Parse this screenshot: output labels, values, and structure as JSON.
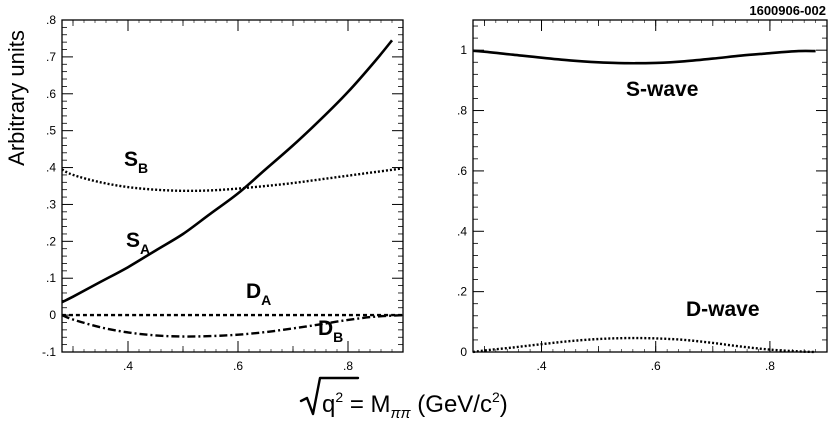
{
  "figure_id": "1600906-002",
  "xlabel": {
    "prefix": "q",
    "prefix_exp": "2",
    "mid": " = M",
    "sub": "ππ",
    "units_pre": " (GeV/c",
    "units_exp": "2",
    "units_post": ")"
  },
  "chart_data": [
    {
      "type": "line",
      "panel": "left",
      "ylabel": "Arbitrary units",
      "xlim": [
        0.28,
        0.9
      ],
      "ylim": [
        -0.1,
        0.8
      ],
      "xticks": [
        0.4,
        0.6,
        0.8
      ],
      "yticks": [
        -0.1,
        0,
        0.1,
        0.2,
        0.3,
        0.4,
        0.5,
        0.6,
        0.7,
        0.8
      ],
      "series": [
        {
          "name": "S_A",
          "label_main": "S",
          "label_sub": "A",
          "style": "solid",
          "x": [
            0.28,
            0.3,
            0.35,
            0.4,
            0.45,
            0.5,
            0.55,
            0.6,
            0.65,
            0.7,
            0.75,
            0.8,
            0.85,
            0.88
          ],
          "y": [
            0.035,
            0.05,
            0.09,
            0.13,
            0.175,
            0.22,
            0.275,
            0.33,
            0.395,
            0.46,
            0.53,
            0.605,
            0.69,
            0.745
          ]
        },
        {
          "name": "S_B",
          "label_main": "S",
          "label_sub": "B",
          "style": "dotted",
          "x": [
            0.28,
            0.3,
            0.35,
            0.4,
            0.45,
            0.5,
            0.55,
            0.6,
            0.65,
            0.7,
            0.75,
            0.8,
            0.85,
            0.9
          ],
          "y": [
            0.395,
            0.38,
            0.36,
            0.347,
            0.34,
            0.337,
            0.338,
            0.343,
            0.35,
            0.358,
            0.368,
            0.378,
            0.388,
            0.398
          ]
        },
        {
          "name": "D_A",
          "label_main": "D",
          "label_sub": "A",
          "style": "dashed",
          "x": [
            0.28,
            0.4,
            0.5,
            0.6,
            0.7,
            0.8,
            0.9
          ],
          "y": [
            0.0,
            0.0,
            0.0,
            0.0,
            0.0,
            0.0,
            0.0
          ]
        },
        {
          "name": "D_B",
          "label_main": "D",
          "label_sub": "B",
          "style": "dashdot",
          "x": [
            0.28,
            0.3,
            0.35,
            0.4,
            0.45,
            0.5,
            0.55,
            0.6,
            0.65,
            0.7,
            0.75,
            0.8,
            0.85,
            0.9
          ],
          "y": [
            0.0,
            -0.012,
            -0.033,
            -0.047,
            -0.055,
            -0.058,
            -0.057,
            -0.053,
            -0.046,
            -0.036,
            -0.025,
            -0.013,
            -0.004,
            0.0
          ]
        }
      ]
    },
    {
      "type": "line",
      "panel": "right",
      "xlim": [
        0.28,
        0.9
      ],
      "ylim": [
        0,
        1.1
      ],
      "xticks": [
        0.4,
        0.6,
        0.8
      ],
      "yticks": [
        0,
        0.2,
        0.4,
        0.6,
        0.8,
        1
      ],
      "series": [
        {
          "name": "S-wave",
          "style": "solid",
          "x": [
            0.28,
            0.3,
            0.35,
            0.4,
            0.45,
            0.5,
            0.55,
            0.6,
            0.65,
            0.7,
            0.75,
            0.8,
            0.85,
            0.88
          ],
          "y": [
            0.998,
            0.995,
            0.985,
            0.975,
            0.966,
            0.96,
            0.957,
            0.958,
            0.963,
            0.972,
            0.982,
            0.99,
            0.997,
            0.997
          ]
        },
        {
          "name": "D-wave",
          "style": "dotted",
          "x": [
            0.28,
            0.3,
            0.35,
            0.4,
            0.45,
            0.5,
            0.55,
            0.6,
            0.65,
            0.7,
            0.75,
            0.8,
            0.85,
            0.88
          ],
          "y": [
            0.0,
            0.005,
            0.015,
            0.026,
            0.036,
            0.043,
            0.046,
            0.045,
            0.04,
            0.03,
            0.018,
            0.008,
            0.002,
            0.0
          ]
        }
      ]
    }
  ]
}
